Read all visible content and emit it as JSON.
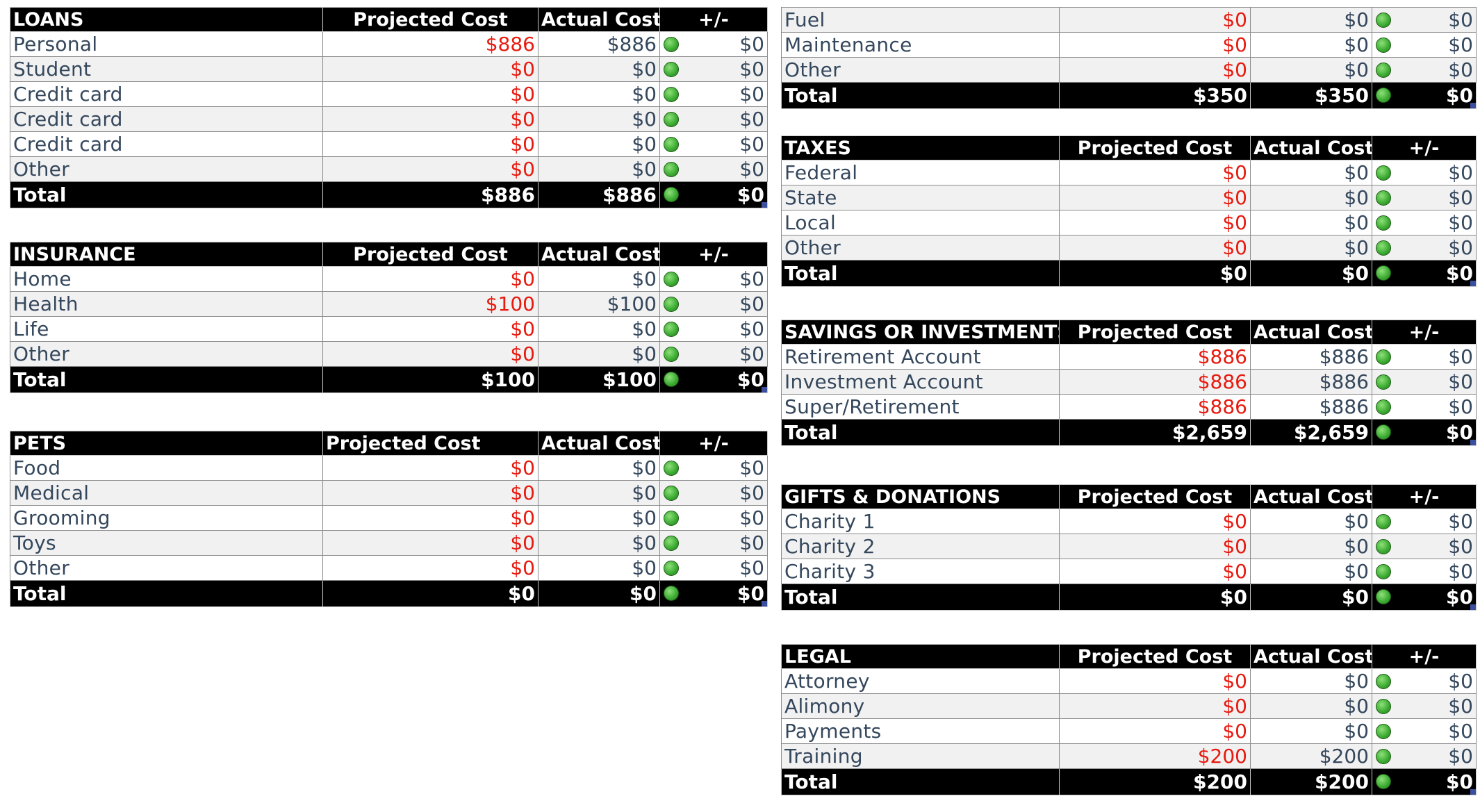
{
  "loans": {
    "title": "LOANS",
    "h_proj": "Projected Cost",
    "h_act": "Actual Cost",
    "h_diff": "+/-",
    "rows": [
      {
        "name": "Personal",
        "proj": "$886",
        "act": "$886",
        "diff": "$0"
      },
      {
        "name": "Student",
        "proj": "$0",
        "act": "$0",
        "diff": "$0"
      },
      {
        "name": "Credit card",
        "proj": "$0",
        "act": "$0",
        "diff": "$0"
      },
      {
        "name": "Credit card",
        "proj": "$0",
        "act": "$0",
        "diff": "$0"
      },
      {
        "name": "Credit card",
        "proj": "$0",
        "act": "$0",
        "diff": "$0"
      },
      {
        "name": "Other",
        "proj": "$0",
        "act": "$0",
        "diff": "$0"
      }
    ],
    "total": {
      "name": "Total",
      "proj": "$886",
      "act": "$886",
      "diff": "$0"
    }
  },
  "insurance": {
    "title": "INSURANCE",
    "h_proj": "Projected Cost",
    "h_act": "Actual Cost",
    "h_diff": "+/-",
    "rows": [
      {
        "name": "Home",
        "proj": "$0",
        "act": "$0",
        "diff": "$0"
      },
      {
        "name": "Health",
        "proj": "$100",
        "act": "$100",
        "diff": "$0"
      },
      {
        "name": "Life",
        "proj": "$0",
        "act": "$0",
        "diff": "$0"
      },
      {
        "name": "Other",
        "proj": "$0",
        "act": "$0",
        "diff": "$0"
      }
    ],
    "total": {
      "name": "Total",
      "proj": "$100",
      "act": "$100",
      "diff": "$0"
    }
  },
  "pets": {
    "title": "PETS",
    "h_proj": "Projected Cost",
    "h_act": "Actual Cost",
    "h_diff": "+/-",
    "rows": [
      {
        "name": "Food",
        "proj": "$0",
        "act": "$0",
        "diff": "$0"
      },
      {
        "name": "Medical",
        "proj": "$0",
        "act": "$0",
        "diff": "$0"
      },
      {
        "name": "Grooming",
        "proj": "$0",
        "act": "$0",
        "diff": "$0"
      },
      {
        "name": "Toys",
        "proj": "$0",
        "act": "$0",
        "diff": "$0"
      },
      {
        "name": "Other",
        "proj": "$0",
        "act": "$0",
        "diff": "$0"
      }
    ],
    "total": {
      "name": "Total",
      "proj": "$0",
      "act": "$0",
      "diff": "$0"
    }
  },
  "transport": {
    "rows": [
      {
        "name": "Fuel",
        "proj": "$0",
        "act": "$0",
        "diff": "$0"
      },
      {
        "name": "Maintenance",
        "proj": "$0",
        "act": "$0",
        "diff": "$0"
      },
      {
        "name": "Other",
        "proj": "$0",
        "act": "$0",
        "diff": "$0"
      }
    ],
    "total": {
      "name": "Total",
      "proj": "$350",
      "act": "$350",
      "diff": "$0"
    }
  },
  "taxes": {
    "title": "TAXES",
    "h_proj": "Projected Cost",
    "h_act": "Actual Cost",
    "h_diff": "+/-",
    "rows": [
      {
        "name": "Federal",
        "proj": "$0",
        "act": "$0",
        "diff": "$0"
      },
      {
        "name": "State",
        "proj": "$0",
        "act": "$0",
        "diff": "$0"
      },
      {
        "name": "Local",
        "proj": "$0",
        "act": "$0",
        "diff": "$0"
      },
      {
        "name": "Other",
        "proj": "$0",
        "act": "$0",
        "diff": "$0"
      }
    ],
    "total": {
      "name": "Total",
      "proj": "$0",
      "act": "$0",
      "diff": "$0"
    }
  },
  "savings": {
    "title": "SAVINGS OR INVESTMENTS",
    "h_proj": "Projected Cost",
    "h_act": "Actual Cost",
    "h_diff": "+/-",
    "rows": [
      {
        "name": "Retirement Account",
        "proj": "$886",
        "act": "$886",
        "diff": "$0"
      },
      {
        "name": "Investment Account",
        "proj": "$886",
        "act": "$886",
        "diff": "$0"
      },
      {
        "name": "Super/Retirement",
        "proj": "$886",
        "act": "$886",
        "diff": "$0"
      }
    ],
    "total": {
      "name": "Total",
      "proj": "$2,659",
      "act": "$2,659",
      "diff": "$0"
    }
  },
  "gifts": {
    "title": "GIFTS & DONATIONS",
    "h_proj": "Projected Cost",
    "h_act": "Actual Cost",
    "h_diff": "+/-",
    "rows": [
      {
        "name": "Charity 1",
        "proj": "$0",
        "act": "$0",
        "diff": "$0"
      },
      {
        "name": "Charity 2",
        "proj": "$0",
        "act": "$0",
        "diff": "$0"
      },
      {
        "name": "Charity 3",
        "proj": "$0",
        "act": "$0",
        "diff": "$0"
      }
    ],
    "total": {
      "name": "Total",
      "proj": "$0",
      "act": "$0",
      "diff": "$0"
    }
  },
  "legal": {
    "title": "LEGAL",
    "h_proj": "Projected Cost",
    "h_act": "Actual Cost",
    "h_diff": "+/-",
    "rows": [
      {
        "name": "Attorney",
        "proj": "$0",
        "act": "$0",
        "diff": "$0"
      },
      {
        "name": "Alimony",
        "proj": "$0",
        "act": "$0",
        "diff": "$0"
      },
      {
        "name": "Payments",
        "proj": "$0",
        "act": "$0",
        "diff": "$0"
      },
      {
        "name": "Training",
        "proj": "$200",
        "act": "$200",
        "diff": "$0"
      }
    ],
    "total": {
      "name": "Total",
      "proj": "$200",
      "act": "$200",
      "diff": "$0"
    }
  },
  "colors": {
    "projected_text": "#e8190e",
    "header_bg": "#000000",
    "status_dot": "#3fae35",
    "row_alt": "#f1f1f1"
  },
  "icons": {
    "status": "green-circle-status-icon"
  }
}
